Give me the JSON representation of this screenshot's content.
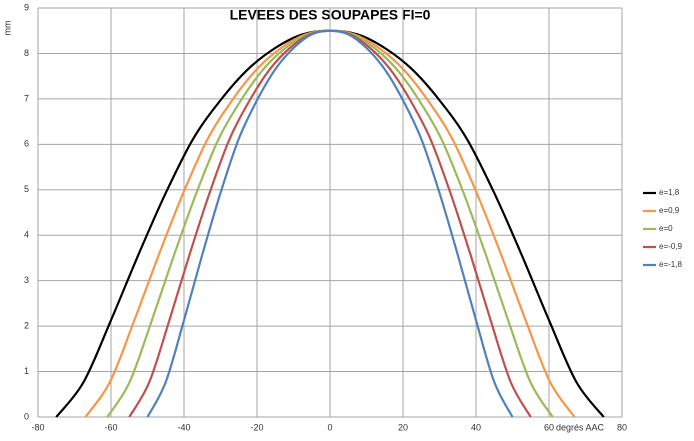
{
  "chart_data": {
    "type": "line",
    "title": "LEVEES DES SOUPAPES FI=0",
    "x_label": "degrés AAC",
    "y_label": "mm",
    "xlim": [
      -80,
      80
    ],
    "xticks": [
      -80,
      -60,
      -40,
      -20,
      0,
      20,
      40,
      60,
      80
    ],
    "ylim": [
      0,
      9
    ],
    "yticks": [
      0,
      1,
      2,
      3,
      4,
      5,
      6,
      7,
      8,
      9
    ],
    "grid": true,
    "legend": "right",
    "series": [
      {
        "name": "e=1,8",
        "color": "#000000",
        "x": [
          -75,
          -67.5,
          -60,
          -52.5,
          -45,
          -37.5,
          -30,
          -22.5,
          -15,
          -7.5,
          0,
          7.5,
          15,
          22.5,
          30,
          37.5,
          45,
          52.5,
          60,
          67.5,
          75
        ],
        "values": [
          0,
          0.77,
          2.13,
          3.57,
          4.93,
          6.12,
          6.97,
          7.65,
          8.12,
          8.42,
          8.5,
          8.42,
          8.12,
          7.65,
          6.97,
          6.12,
          4.93,
          3.57,
          2.13,
          0.77,
          0
        ]
      },
      {
        "name": "e=0,9",
        "color": "#f79646",
        "x": [
          -67,
          -60.3,
          -53.6,
          -46.9,
          -40.2,
          -33.5,
          -26.8,
          -20.1,
          -13.4,
          -6.7,
          0,
          6.7,
          13.4,
          20.1,
          26.8,
          33.5,
          40.2,
          46.9,
          53.6,
          60.3,
          67
        ],
        "values": [
          0,
          0.77,
          2.13,
          3.57,
          4.93,
          6.12,
          6.97,
          7.65,
          8.12,
          8.42,
          8.5,
          8.42,
          8.12,
          7.65,
          6.97,
          6.12,
          4.93,
          3.57,
          2.13,
          0.77,
          0
        ]
      },
      {
        "name": "e=0",
        "color": "#9bbb59",
        "x": [
          -61,
          -54.9,
          -48.8,
          -42.7,
          -36.6,
          -30.5,
          -24.4,
          -18.3,
          -12.2,
          -6.1,
          0,
          6.1,
          12.2,
          18.3,
          24.4,
          30.5,
          36.6,
          42.7,
          48.8,
          54.9,
          61
        ],
        "values": [
          0,
          0.77,
          2.13,
          3.57,
          4.93,
          6.12,
          6.97,
          7.65,
          8.12,
          8.42,
          8.5,
          8.42,
          8.12,
          7.65,
          6.97,
          6.12,
          4.93,
          3.57,
          2.13,
          0.77,
          0
        ]
      },
      {
        "name": "e=-0,9",
        "color": "#c0504d",
        "x": [
          -55,
          -49.5,
          -44,
          -38.5,
          -33,
          -27.5,
          -22,
          -16.5,
          -11,
          -5.5,
          0,
          5.5,
          11,
          16.5,
          22,
          27.5,
          33,
          38.5,
          44,
          49.5,
          55
        ],
        "values": [
          0,
          0.77,
          2.13,
          3.57,
          4.93,
          6.12,
          6.97,
          7.65,
          8.12,
          8.42,
          8.5,
          8.42,
          8.12,
          7.65,
          6.97,
          6.12,
          4.93,
          3.57,
          2.13,
          0.77,
          0
        ]
      },
      {
        "name": "e=-1,8",
        "color": "#4f81bd",
        "x": [
          -50,
          -45,
          -40,
          -35,
          -30,
          -25,
          -20,
          -15,
          -10,
          -5,
          0,
          5,
          10,
          15,
          20,
          25,
          30,
          35,
          40,
          45,
          50
        ],
        "values": [
          0,
          0.77,
          2.13,
          3.57,
          4.93,
          6.12,
          6.97,
          7.65,
          8.12,
          8.42,
          8.5,
          8.42,
          8.12,
          7.65,
          6.97,
          6.12,
          4.93,
          3.57,
          2.13,
          0.77,
          0
        ]
      }
    ]
  }
}
